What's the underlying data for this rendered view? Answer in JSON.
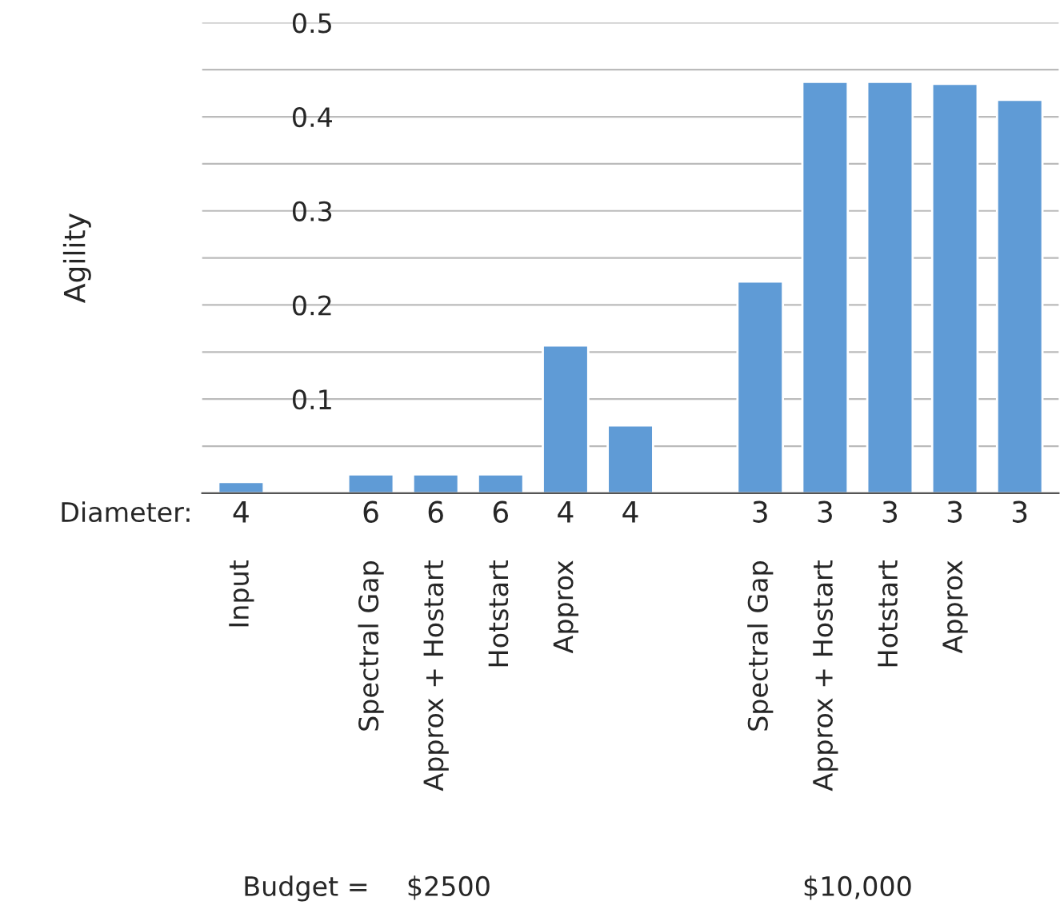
{
  "chart_data": {
    "type": "bar",
    "ylabel": "Agility",
    "categories": [
      "Input",
      null,
      "Spectral Gap",
      "Approx + Hostart",
      "Hotstart",
      "Approx",
      null,
      null,
      "Spectral Gap",
      "Approx + Hostart",
      "Hotstart",
      "Approx",
      null
    ],
    "values": [
      0.012,
      null,
      0.02,
      0.02,
      0.02,
      0.157,
      0.072,
      null,
      0.225,
      0.437,
      0.437,
      0.435,
      0.418
    ],
    "color": "#5f9bd6",
    "ylim": [
      0,
      0.5
    ],
    "yticks": [
      {
        "value": 0.05,
        "label": null
      },
      0.1,
      {
        "value": 0.15,
        "label": null
      },
      0.2,
      {
        "value": 0.25,
        "label": null
      },
      0.3,
      {
        "value": 0.35,
        "label": null
      },
      0.4,
      {
        "value": 0.45,
        "label": null
      },
      0.5
    ],
    "grid": "y",
    "annotations": [
      "Diameter:",
      "4",
      "6",
      "6",
      "6",
      "4",
      "4",
      "3",
      "3",
      "3",
      "3",
      "3",
      "Budget =",
      "$2500",
      "$10,000"
    ]
  }
}
